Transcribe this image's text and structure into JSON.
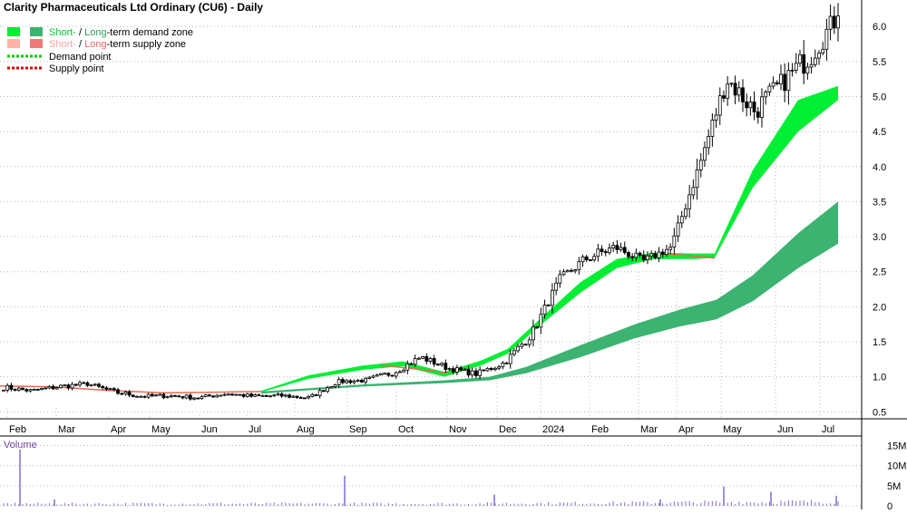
{
  "chart_data": {
    "type": "candlestick",
    "title": "Clarity Pharmaceuticals Ltd Ordinary (CU6) - Daily",
    "legend": {
      "placement": "top-left",
      "demand_zone": {
        "short": "Short-",
        "sep": " / ",
        "long": "Long",
        "suffix": "-term demand zone"
      },
      "supply_zone": {
        "short": "Short-",
        "sep": " / ",
        "long": "Long",
        "suffix": "-term supply zone"
      },
      "demand_point": "Demand point",
      "supply_point": "Supply point"
    },
    "colors": {
      "short_demand": "#00ee33",
      "long_demand": "#3cb371",
      "short_supply": "#ffb3a7",
      "long_supply": "#f07a7a",
      "demand_point": "#00cc00",
      "supply_point": "#dd0000",
      "volume": "#7a6fd0",
      "volume_label": "#6a3fa0",
      "grid": "#b8b8b8"
    },
    "price_axis": {
      "side": "right",
      "ylim": [
        0.4,
        6.3
      ],
      "ticks": [
        "0.5",
        "1.0",
        "1.5",
        "2.0",
        "2.5",
        "3.0",
        "3.5",
        "4.0",
        "4.5",
        "5.0",
        "5.5",
        "6.0"
      ],
      "grid": true
    },
    "months": [
      "Feb",
      "Mar",
      "Apr",
      "May",
      "Jun",
      "Jul",
      "Aug",
      "Sep",
      "Oct",
      "Nov",
      "Dec",
      "2024",
      "Feb",
      "Mar",
      "Apr",
      "May",
      "Jun",
      "Jul"
    ],
    "month_grid_prices": [
      0.83,
      0.84,
      0.72,
      0.72,
      0.74,
      0.74,
      0.95,
      1.24,
      1.12,
      1.03,
      1.4,
      2.12,
      2.76,
      2.78,
      2.68,
      2.9,
      5.2,
      5.3
    ],
    "price_anchors": [
      [
        0.85,
        0.08,
        0.8
      ],
      [
        0.8,
        0.06,
        0.8
      ],
      [
        0.86,
        0.08,
        0.8
      ],
      [
        0.9,
        0.06,
        0.8
      ],
      [
        0.78,
        0.08,
        0.9
      ],
      [
        0.72,
        0.06,
        0.8
      ],
      [
        0.73,
        0.06,
        0.7
      ],
      [
        0.7,
        0.06,
        0.7
      ],
      [
        0.76,
        0.06,
        0.7
      ],
      [
        0.72,
        0.06,
        0.7
      ],
      [
        0.73,
        0.06,
        0.8
      ],
      [
        0.7,
        0.06,
        0.9
      ],
      [
        0.93,
        0.06,
        0.9
      ],
      [
        0.95,
        0.06,
        0.9
      ],
      [
        1.06,
        0.1,
        1.1
      ],
      [
        1.28,
        0.1,
        1.2
      ],
      [
        1.12,
        0.08,
        1.0
      ],
      [
        1.04,
        0.08,
        1.0
      ],
      [
        1.2,
        0.1,
        1.3
      ],
      [
        1.62,
        0.14,
        1.2
      ],
      [
        2.4,
        0.12,
        1.3
      ],
      [
        2.7,
        0.18,
        1.3
      ],
      [
        2.85,
        0.16,
        1.3
      ],
      [
        2.65,
        0.12,
        1.2
      ],
      [
        2.85,
        0.12,
        1.8
      ],
      [
        4.0,
        0.2,
        2.6
      ],
      [
        5.25,
        0.3,
        2.6
      ],
      [
        4.8,
        0.35,
        2.1
      ],
      [
        5.2,
        0.3,
        3.0
      ],
      [
        5.6,
        0.4,
        2.2
      ],
      [
        6.15,
        0.3,
        6.0
      ]
    ],
    "candles_note": "",
    "zones": {
      "short_demand": [
        [
          288,
          0.78,
          0.8
        ],
        [
          340,
          0.97,
          1.02
        ],
        [
          400,
          1.1,
          1.16
        ],
        [
          444,
          1.15,
          1.22
        ],
        [
          490,
          1.0,
          1.07
        ],
        [
          530,
          1.16,
          1.23
        ],
        [
          560,
          1.33,
          1.4
        ],
        [
          600,
          1.78,
          1.88
        ],
        [
          640,
          2.2,
          2.35
        ],
        [
          680,
          2.55,
          2.68
        ],
        [
          720,
          2.68,
          2.77
        ],
        [
          765,
          2.68,
          2.76
        ],
        [
          788,
          2.7,
          2.76
        ],
        [
          830,
          3.7,
          3.95
        ],
        [
          880,
          4.5,
          4.95
        ],
        [
          924,
          4.95,
          5.15
        ]
      ],
      "long_demand": [
        [
          288,
          0.76,
          0.79
        ],
        [
          400,
          0.86,
          0.89
        ],
        [
          490,
          0.91,
          0.95
        ],
        [
          540,
          0.95,
          1.0
        ],
        [
          580,
          1.05,
          1.14
        ],
        [
          640,
          1.28,
          1.45
        ],
        [
          700,
          1.55,
          1.75
        ],
        [
          750,
          1.72,
          1.96
        ],
        [
          790,
          1.82,
          2.1
        ],
        [
          830,
          2.08,
          2.45
        ],
        [
          880,
          2.55,
          3.05
        ],
        [
          924,
          2.9,
          3.5
        ]
      ],
      "short_supply": [
        [
          0,
          0.86,
          0.88
        ],
        [
          60,
          0.84,
          0.87
        ],
        [
          120,
          0.79,
          0.82
        ],
        [
          180,
          0.76,
          0.78
        ],
        [
          240,
          0.77,
          0.79
        ],
        [
          288,
          0.78,
          0.8
        ]
      ],
      "short_supply_2": [
        [
          420,
          1.15,
          1.18
        ],
        [
          470,
          1.08,
          1.11
        ],
        [
          495,
          1.04,
          1.06
        ]
      ],
      "short_supply_3": [
        [
          730,
          2.75,
          2.78
        ],
        [
          770,
          2.7,
          2.73
        ],
        [
          788,
          2.68,
          2.71
        ]
      ]
    },
    "volume": {
      "label": "Volume",
      "ylim": [
        0,
        16
      ],
      "unit": "M",
      "ticks": [
        "0",
        "5M",
        "10M",
        "15M"
      ],
      "spikes": [
        [
          22,
          14.0
        ],
        [
          380,
          7.5
        ],
        [
          545,
          2.8
        ],
        [
          798,
          4.8
        ],
        [
          850,
          3.5
        ],
        [
          922,
          2.5
        ],
        [
          60,
          1.6
        ],
        [
          728,
          1.6
        ]
      ],
      "baseline_m": 0.6
    }
  }
}
